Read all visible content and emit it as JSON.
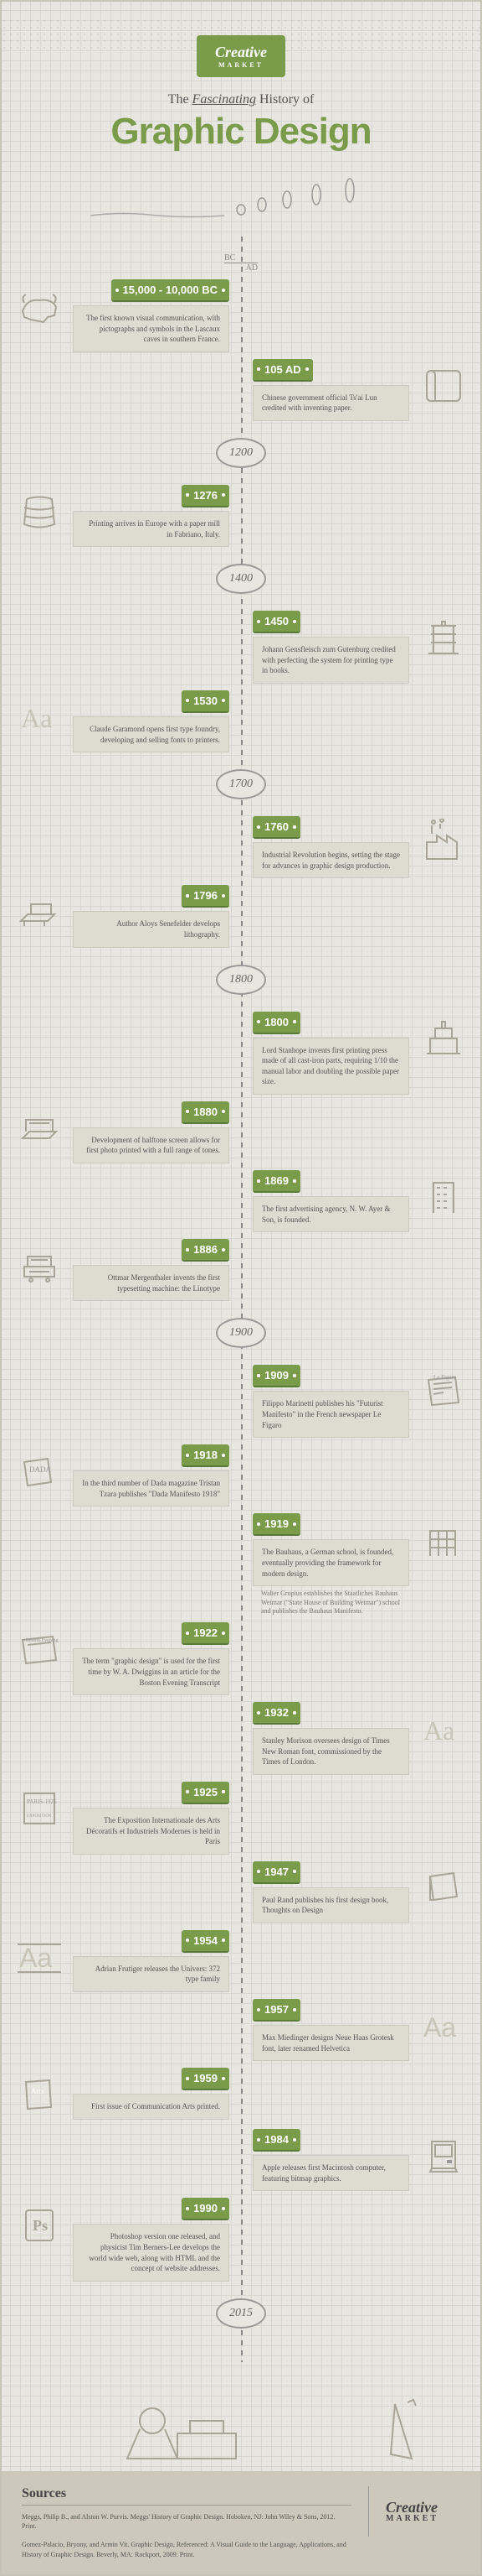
{
  "brand": "Creative",
  "brand_sub": "MARKET",
  "subtitle_pre": "The ",
  "subtitle_em": "Fascinating",
  "subtitle_post": " History of",
  "main_title": "Graphic Design",
  "colors": {
    "accent": "#7a9b4a",
    "card_bg": "#dedbd0",
    "text": "#555"
  },
  "bc_label": "BC",
  "ad_label": "AD",
  "era_markers": [
    "1200",
    "1400",
    "1700",
    "1800",
    "1900",
    "2015"
  ],
  "events": [
    {
      "side": "left",
      "year": "15,000 - 10,000 BC",
      "text": "The first known visual communication, with pictographs and symbols in the Lascaux caves in southern France.",
      "icon": "bull"
    },
    {
      "side": "right",
      "year": "105 AD",
      "text": "Chinese government official Ts'ai Lun credited with inventing paper.",
      "icon": "scroll"
    },
    {
      "era": "1200"
    },
    {
      "side": "left",
      "year": "1276",
      "text": "Printing arrives in Europe with a paper mill in Fabriano, Italy.",
      "icon": "barrel"
    },
    {
      "era": "1400"
    },
    {
      "side": "right",
      "year": "1450",
      "text": "Johann Gensfleisch zum Gutenburg credited with perfecting the system for printing type in books.",
      "icon": "press"
    },
    {
      "side": "left",
      "year": "1530",
      "text": "Claude Garamond opens first type foundry, developing and selling fonts to printers.",
      "icon": "aa"
    },
    {
      "era": "1700"
    },
    {
      "side": "right",
      "year": "1760",
      "text": "Industrial Revolution begins, setting the stage for advances in graphic design production.",
      "icon": "factory"
    },
    {
      "side": "left",
      "year": "1796",
      "text": "Author Aloys Senefelder develops lithography.",
      "icon": "litho"
    },
    {
      "era": "1800"
    },
    {
      "side": "right",
      "year": "1800",
      "text": "Lord Stanhope invents first printing press made of all cast-iron parts, requiring 1/10 the manual labor and doubling the possible paper size.",
      "icon": "ironpress"
    },
    {
      "side": "left",
      "year": "1880",
      "text": "Development of halftone screen allows for first photo printed with a full range of tones.",
      "icon": "scanner"
    },
    {
      "side": "right",
      "year": "1869",
      "text": "The first advertising agency, N. W. Ayer & Son, is founded.",
      "icon": "building"
    },
    {
      "side": "left",
      "year": "1886",
      "text": "Ottmar Mergenthaler invents the first typesetting machine: the Linotype",
      "icon": "typewriter"
    },
    {
      "era": "1900"
    },
    {
      "side": "right",
      "year": "1909",
      "text": "Filippo Marinetti publishes his \"Futurist Manifesto\" in the French newspaper Le Figaro",
      "icon": "newspaper"
    },
    {
      "side": "left",
      "year": "1918",
      "text": "In the third number of Dada magazine Tristan Tzara publishes \"Dada Manifesto 1918\"",
      "icon": "dada"
    },
    {
      "side": "right",
      "year": "1919",
      "text": "The Bauhaus, a German school, is founded, eventually providing the framework for modern design.",
      "icon": "bauhaus",
      "note": "Walter Gropius establishes the Staatliches Bauhaus Weimar (\"State House of Building Weimar\") school and publishes the Bauhaus Manifesto."
    },
    {
      "side": "left",
      "year": "1922",
      "text": "The term \"graphic design\" is used for the first time by W. A. Dwiggins in an article for the Boston Evening Transcript",
      "icon": "boston"
    },
    {
      "side": "right",
      "year": "1932",
      "text": "Stanley Morison oversees design of Times New Roman font, commissioned by the Times of London.",
      "icon": "aa-serif"
    },
    {
      "side": "left",
      "year": "1925",
      "text": "The Exposition Internationale des Arts Décoratifs et Industriels Modernes is held in Paris",
      "icon": "paris"
    },
    {
      "side": "right",
      "year": "1947",
      "text": "Paul Rand publishes his first design book, Thoughts on Design",
      "icon": "book"
    },
    {
      "side": "left",
      "year": "1954",
      "text": "Adrian Frutiger releases the Univers: 372 type family",
      "icon": "aa-sans"
    },
    {
      "side": "right",
      "year": "1957",
      "text": "Max Miedinger designs Neue Haas Grotesk font, later renamed Helvetica",
      "icon": "aa-helv"
    },
    {
      "side": "left",
      "year": "1959",
      "text": "First issue of Communication Arts printed.",
      "icon": "arts"
    },
    {
      "side": "right",
      "year": "1984",
      "text": "Apple releases first Macintosh computer, featuring bitmap graphics.",
      "icon": "mac"
    },
    {
      "side": "left",
      "year": "1990",
      "text": "Photoshop version one released, and physicist Tim Berners-Lee develops the world wide web, along with HTML and the concept of website addresses.",
      "icon": "ps"
    },
    {
      "era": "2015"
    }
  ],
  "sources": {
    "title": "Sources",
    "text": "Meggs, Philip B., and Alston W. Purvis. Meggs' History of Graphic Design. Hoboken, NJ: John Wiley & Sons, 2012. Print.\n\nGomez-Palacio, Bryony, and Armin Vit. Graphic Design, Referenced: A Visual Guide to the Language, Applications, and History of Graphic Design. Beverly, MA: Rockport, 2009. Print."
  }
}
